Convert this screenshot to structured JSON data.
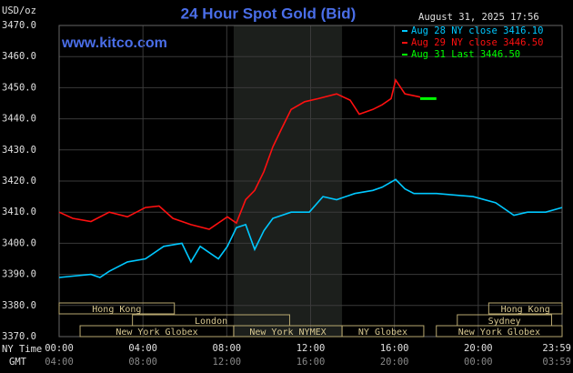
{
  "chart_data": {
    "type": "line",
    "title": "24 Hour Spot Gold (Bid)",
    "website": "www.kitco.com",
    "timestamp": "August 31, 2025 17:56",
    "y_label": "USD/oz",
    "x_label": "NY Time",
    "x2_label": "GMT",
    "xlim": [
      0,
      24
    ],
    "ylim": [
      3370,
      3470
    ],
    "yticks": [
      {
        "value": 3370,
        "label": "3370.0"
      },
      {
        "value": 3380,
        "label": "3380.0"
      },
      {
        "value": 3390,
        "label": "3390.0"
      },
      {
        "value": 3400,
        "label": "3400.0"
      },
      {
        "value": 3410,
        "label": "3410.0"
      },
      {
        "value": 3420,
        "label": "3420.0"
      },
      {
        "value": 3430,
        "label": "3430.0"
      },
      {
        "value": 3440,
        "label": "3440.0"
      },
      {
        "value": 3450,
        "label": "3450.0"
      },
      {
        "value": 3460,
        "label": "3460.0"
      },
      {
        "value": 3470,
        "label": "3470.0"
      }
    ],
    "xticks": [
      {
        "value": 0,
        "label": "00:00"
      },
      {
        "value": 4,
        "label": "04:00"
      },
      {
        "value": 8,
        "label": "08:00"
      },
      {
        "value": 12,
        "label": "12:00"
      },
      {
        "value": 16,
        "label": "16:00"
      },
      {
        "value": 20,
        "label": "20:00"
      },
      {
        "value": 24,
        "label": "23:59"
      }
    ],
    "x2_tick_labels": [
      "04:00",
      "08:00",
      "12:00",
      "16:00",
      "20:00",
      "00:00",
      "03:59"
    ],
    "grid": true,
    "shaded_region": [
      8.33,
      13.5
    ],
    "series": [
      {
        "name": "Aug 28 NY close 3416.10",
        "color": "#00c8ff",
        "x": [
          0,
          1.52,
          1.95,
          2.39,
          3.26,
          4.12,
          4.99,
          5.86,
          6.29,
          6.73,
          7.6,
          8.03,
          8.46,
          8.9,
          9.33,
          9.77,
          10.2,
          11.07,
          11.94,
          12.59,
          13.24,
          14.11,
          14.97,
          15.41,
          16.06,
          16.5,
          16.93,
          18.01,
          19.75,
          20.83,
          21.7,
          22.35,
          23.22,
          24
        ],
        "values": [
          3389,
          3390,
          3389,
          3391,
          3394,
          3395,
          3399,
          3400,
          3394,
          3399,
          3395,
          3399,
          3405,
          3406,
          3398,
          3404,
          3408,
          3410,
          3410,
          3415,
          3414,
          3416,
          3417,
          3418,
          3420.5,
          3417.5,
          3416,
          3416,
          3415,
          3413,
          3409,
          3410,
          3410,
          3411.5
        ]
      },
      {
        "name": "Aug 29 NY close 3446.50",
        "color": "#ff1010",
        "x": [
          0,
          0.65,
          1.52,
          2.39,
          3.26,
          4.12,
          4.77,
          5.43,
          6.29,
          7.16,
          8.03,
          8.46,
          8.9,
          9.33,
          9.77,
          10.2,
          10.63,
          11.07,
          11.72,
          12.37,
          13.24,
          13.89,
          14.32,
          14.97,
          15.41,
          15.84,
          16.06,
          16.5,
          17.23
        ],
        "values": [
          3410,
          3408,
          3407,
          3410,
          3408.5,
          3411.5,
          3412,
          3408,
          3406,
          3404.5,
          3408.5,
          3406.5,
          3414,
          3417,
          3423,
          3431,
          3437,
          3443,
          3445.5,
          3446.5,
          3448,
          3446,
          3441.5,
          3443,
          3444.5,
          3446.5,
          3452.5,
          3448,
          3447
        ]
      },
      {
        "name": "Aug 31 Last 3446.50",
        "color": "#00ff00",
        "x": [
          17.23,
          18.0
        ],
        "values": [
          3446.5,
          3446.5
        ]
      }
    ],
    "sessions": [
      [
        {
          "label": "Hong Kong",
          "start": 0,
          "end": 5.5
        },
        {
          "label": "Hong Kong",
          "start": 20.5,
          "end": 24
        }
      ],
      [
        {
          "label": "London",
          "start": 3.5,
          "end": 11
        },
        {
          "label": "Sydney",
          "start": 19,
          "end": 23.5
        }
      ],
      [
        {
          "label": "New York Globex",
          "start": 1,
          "end": 8.33
        },
        {
          "label": "New York NYMEX",
          "start": 8.33,
          "end": 13.5
        },
        {
          "label": "NY Globex",
          "start": 13.5,
          "end": 17.4
        },
        {
          "label": "New York Globex",
          "start": 18,
          "end": 24
        }
      ]
    ]
  }
}
